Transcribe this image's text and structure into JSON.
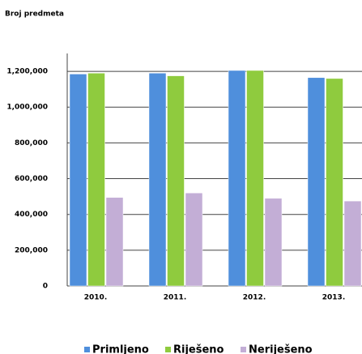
{
  "chart_data": {
    "type": "bar",
    "title": "Broj predmeta",
    "categories": [
      "2010.",
      "2011.",
      "2012.",
      "2013."
    ],
    "series": [
      {
        "name": "Primljeno",
        "color": "#4f8fdc",
        "values": [
          1185000,
          1190000,
          1205000,
          1165000
        ]
      },
      {
        "name": "Riješeno",
        "color": "#8fcb3e",
        "values": [
          1190000,
          1175000,
          1205000,
          1160000
        ]
      },
      {
        "name": "Neriješeno",
        "color": "#c3aed6",
        "values": [
          495000,
          520000,
          490000,
          475000
        ]
      }
    ],
    "ylim": [
      0,
      1300000
    ],
    "yticks": [
      0,
      {
        "value": 200000,
        "label": "200,000"
      },
      {
        "value": 400000,
        "label": "400,000"
      },
      {
        "value": 600000,
        "label": "600,000"
      },
      {
        "value": 800000,
        "label": "800,000"
      },
      {
        "value": 1000000,
        "label": "1,000,000"
      },
      {
        "value": 1200000,
        "label": "1,200,000"
      }
    ],
    "grid": true,
    "legend": "bottom"
  }
}
